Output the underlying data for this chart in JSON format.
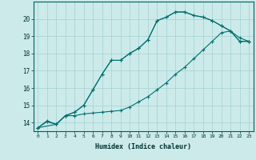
{
  "xlabel": "Humidex (Indice chaleur)",
  "bg_color": "#cceaea",
  "line_color": "#007070",
  "grid_color": "#aad4d4",
  "ylim": [
    13.5,
    21.0
  ],
  "xlim": [
    -0.5,
    23.5
  ],
  "yticks": [
    14,
    15,
    16,
    17,
    18,
    19,
    20
  ],
  "xticks": [
    0,
    1,
    2,
    3,
    4,
    5,
    6,
    7,
    8,
    9,
    10,
    11,
    12,
    13,
    14,
    15,
    16,
    17,
    18,
    19,
    20,
    21,
    22,
    23
  ],
  "line1_x": [
    0,
    1,
    2,
    3,
    4,
    5,
    6,
    7,
    8,
    9,
    10,
    11,
    12,
    13,
    14,
    15,
    16,
    17,
    18,
    19,
    20,
    21,
    22,
    23
  ],
  "line1_y": [
    13.7,
    14.1,
    13.9,
    14.4,
    14.6,
    15.0,
    15.9,
    16.8,
    17.6,
    17.6,
    18.0,
    18.3,
    18.8,
    19.9,
    20.1,
    20.4,
    20.4,
    20.2,
    20.1,
    19.9,
    19.6,
    19.3,
    18.7,
    18.7
  ],
  "line2_x": [
    0,
    1,
    2,
    3,
    4,
    5,
    6,
    7,
    8,
    9,
    10,
    11,
    12,
    13,
    14,
    15,
    16,
    17,
    18,
    19,
    20,
    21,
    22,
    23
  ],
  "line2_y": [
    13.7,
    14.05,
    13.9,
    14.4,
    14.4,
    14.5,
    14.55,
    14.6,
    14.65,
    14.7,
    14.9,
    15.2,
    15.5,
    15.9,
    16.3,
    16.8,
    17.2,
    17.7,
    18.2,
    18.7,
    19.2,
    19.3,
    18.9,
    18.7
  ],
  "line3_x": [
    0,
    2,
    3,
    4,
    5,
    6,
    7,
    8,
    9,
    10,
    11,
    12,
    13,
    14,
    15,
    16,
    17,
    18,
    19,
    20,
    21,
    22,
    23
  ],
  "line3_y": [
    13.7,
    13.9,
    14.4,
    14.6,
    15.0,
    15.9,
    16.8,
    17.6,
    17.6,
    18.0,
    18.3,
    18.8,
    19.9,
    20.1,
    20.4,
    20.4,
    20.2,
    20.1,
    19.9,
    19.6,
    19.3,
    18.7,
    18.7
  ]
}
